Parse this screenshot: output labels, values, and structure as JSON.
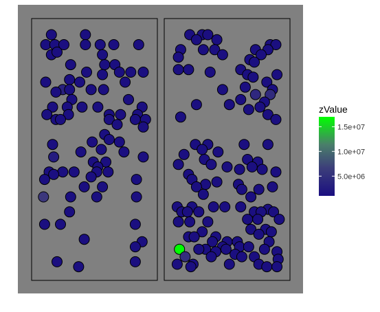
{
  "chart_data": {
    "type": "scatter",
    "facets": 2,
    "background_color": "#808080",
    "panel_border_color": "#000000",
    "point_outline_color": "#000000",
    "legend": {
      "title": "zValue",
      "position": "right",
      "ticks": [
        {
          "value": 5000000,
          "label": "5.0e+06"
        },
        {
          "value": 10000000,
          "label": "1.0e+07"
        },
        {
          "value": 15000000,
          "label": "1.5e+07"
        }
      ],
      "range": [
        1000000,
        17000000
      ],
      "colors": [
        "#1a0e80",
        "#4c4b7a",
        "#4a7f6a",
        "#00ff00"
      ]
    },
    "x_range": [
      0,
      1
    ],
    "y_range": [
      0,
      1
    ],
    "panels": [
      {
        "points": [
          [
            0.12,
            0.96,
            1100000.0
          ],
          [
            0.42,
            0.96,
            1100000.0
          ],
          [
            0.07,
            0.92,
            1100000.0
          ],
          [
            0.15,
            0.92,
            1100000.0
          ],
          [
            0.23,
            0.92,
            1100000.0
          ],
          [
            0.42,
            0.92,
            1100000.0
          ],
          [
            0.55,
            0.92,
            1100000.0
          ],
          [
            0.67,
            0.92,
            1100000.0
          ],
          [
            0.89,
            0.92,
            1100000.0
          ],
          [
            0.12,
            0.88,
            1100000.0
          ],
          [
            0.17,
            0.89,
            1100000.0
          ],
          [
            0.57,
            0.88,
            1100000.0
          ],
          [
            0.29,
            0.84,
            1100000.0
          ],
          [
            0.59,
            0.84,
            1100000.0
          ],
          [
            0.68,
            0.84,
            1100000.0
          ],
          [
            0.57,
            0.8,
            1100000.0
          ],
          [
            0.72,
            0.81,
            1100000.0
          ],
          [
            0.82,
            0.81,
            1100000.0
          ],
          [
            0.93,
            0.81,
            1100000.0
          ],
          [
            0.43,
            0.81,
            1100000.0
          ],
          [
            0.28,
            0.78,
            1100000.0
          ],
          [
            0.37,
            0.77,
            1100000.0
          ],
          [
            0.07,
            0.77,
            1100000.0
          ],
          [
            0.77,
            0.77,
            1100000.0
          ],
          [
            0.22,
            0.74,
            2600000.0
          ],
          [
            0.28,
            0.74,
            1100000.0
          ],
          [
            0.47,
            0.74,
            1100000.0
          ],
          [
            0.58,
            0.74,
            1100000.0
          ],
          [
            0.16,
            0.73,
            1100000.0
          ],
          [
            0.3,
            0.7,
            1100000.0
          ],
          [
            0.8,
            0.7,
            1100000.0
          ],
          [
            0.13,
            0.67,
            1100000.0
          ],
          [
            0.26,
            0.67,
            1100000.0
          ],
          [
            0.39,
            0.67,
            1100000.0
          ],
          [
            0.53,
            0.67,
            1100000.0
          ],
          [
            0.92,
            0.67,
            1100000.0
          ],
          [
            0.88,
            0.64,
            1100000.0
          ],
          [
            0.08,
            0.64,
            1100000.0
          ],
          [
            0.27,
            0.64,
            1100000.0
          ],
          [
            0.63,
            0.64,
            1100000.0
          ],
          [
            0.73,
            0.64,
            1100000.0
          ],
          [
            0.16,
            0.62,
            1100000.0
          ],
          [
            0.2,
            0.62,
            1100000.0
          ],
          [
            0.63,
            0.62,
            1100000.0
          ],
          [
            0.86,
            0.62,
            1100000.0
          ],
          [
            0.95,
            0.62,
            1100000.0
          ],
          [
            0.93,
            0.59,
            1100000.0
          ],
          [
            0.7,
            0.6,
            1100000.0
          ],
          [
            0.59,
            0.56,
            1100000.0
          ],
          [
            0.63,
            0.54,
            1100000.0
          ],
          [
            0.48,
            0.53,
            1100000.0
          ],
          [
            0.72,
            0.53,
            1100000.0
          ],
          [
            0.13,
            0.52,
            1100000.0
          ],
          [
            0.56,
            0.5,
            1100000.0
          ],
          [
            0.38,
            0.49,
            1100000.0
          ],
          [
            0.76,
            0.49,
            1100000.0
          ],
          [
            0.14,
            0.47,
            2200000.0
          ],
          [
            0.93,
            0.47,
            1100000.0
          ],
          [
            0.49,
            0.45,
            1100000.0
          ],
          [
            0.6,
            0.45,
            1100000.0
          ],
          [
            0.53,
            0.43,
            1100000.0
          ],
          [
            0.1,
            0.41,
            1100000.0
          ],
          [
            0.22,
            0.41,
            1100000.0
          ],
          [
            0.32,
            0.41,
            1100000.0
          ],
          [
            0.52,
            0.41,
            1100000.0
          ],
          [
            0.62,
            0.41,
            1100000.0
          ],
          [
            0.14,
            0.4,
            1100000.0
          ],
          [
            0.47,
            0.39,
            1100000.0
          ],
          [
            0.06,
            0.38,
            1100000.0
          ],
          [
            0.87,
            0.38,
            1100000.0
          ],
          [
            0.41,
            0.35,
            1100000.0
          ],
          [
            0.57,
            0.35,
            1100000.0
          ],
          [
            0.05,
            0.31,
            4600000.0
          ],
          [
            0.29,
            0.31,
            1100000.0
          ],
          [
            0.52,
            0.31,
            1100000.0
          ],
          [
            0.87,
            0.31,
            1100000.0
          ],
          [
            0.28,
            0.25,
            1100000.0
          ],
          [
            0.06,
            0.2,
            1100000.0
          ],
          [
            0.2,
            0.2,
            1100000.0
          ],
          [
            0.86,
            0.2,
            1100000.0
          ],
          [
            0.41,
            0.14,
            1100000.0
          ],
          [
            0.92,
            0.13,
            1100000.0
          ],
          [
            0.86,
            0.11,
            1100000.0
          ],
          [
            0.17,
            0.05,
            1100000.0
          ],
          [
            0.36,
            0.03,
            1100000.0
          ],
          [
            0.86,
            0.05,
            1100000.0
          ]
        ]
      },
      {
        "points": [
          [
            0.17,
            0.96,
            1100000.0
          ],
          [
            0.28,
            0.96,
            1100000.0
          ],
          [
            0.33,
            0.96,
            1100000.0
          ],
          [
            0.23,
            0.94,
            1100000.0
          ],
          [
            0.41,
            0.94,
            1100000.0
          ],
          [
            0.88,
            0.92,
            1100000.0
          ],
          [
            0.93,
            0.92,
            1100000.0
          ],
          [
            0.09,
            0.9,
            1100000.0
          ],
          [
            0.29,
            0.9,
            1100000.0
          ],
          [
            0.39,
            0.9,
            1100000.0
          ],
          [
            0.75,
            0.9,
            1100000.0
          ],
          [
            0.86,
            0.9,
            1100000.0
          ],
          [
            0.07,
            0.87,
            1100000.0
          ],
          [
            0.46,
            0.88,
            1100000.0
          ],
          [
            0.8,
            0.88,
            1100000.0
          ],
          [
            0.7,
            0.86,
            1100000.0
          ],
          [
            0.74,
            0.85,
            1100000.0
          ],
          [
            0.62,
            0.82,
            1100000.0
          ],
          [
            0.07,
            0.82,
            1100000.0
          ],
          [
            0.16,
            0.82,
            1100000.0
          ],
          [
            0.35,
            0.81,
            1100000.0
          ],
          [
            0.68,
            0.8,
            1100000.0
          ],
          [
            0.94,
            0.8,
            1100000.0
          ],
          [
            0.73,
            0.79,
            1100000.0
          ],
          [
            0.85,
            0.77,
            1100000.0
          ],
          [
            0.66,
            0.75,
            1100000.0
          ],
          [
            0.46,
            0.74,
            1100000.0
          ],
          [
            0.9,
            0.74,
            1100000.0
          ],
          [
            0.75,
            0.72,
            3200000.0
          ],
          [
            0.88,
            0.72,
            3500000.0
          ],
          [
            0.62,
            0.7,
            1100000.0
          ],
          [
            0.83,
            0.69,
            1100000.0
          ],
          [
            0.79,
            0.67,
            1100000.0
          ],
          [
            0.23,
            0.68,
            1100000.0
          ],
          [
            0.52,
            0.68,
            1100000.0
          ],
          [
            0.69,
            0.66,
            1100000.0
          ],
          [
            0.09,
            0.63,
            1100000.0
          ],
          [
            0.86,
            0.64,
            1100000.0
          ],
          [
            0.93,
            0.62,
            1100000.0
          ],
          [
            0.22,
            0.52,
            1100000.0
          ],
          [
            0.33,
            0.52,
            1100000.0
          ],
          [
            0.65,
            0.52,
            1100000.0
          ],
          [
            0.86,
            0.52,
            1100000.0
          ],
          [
            0.28,
            0.5,
            1100000.0
          ],
          [
            0.42,
            0.49,
            1100000.0
          ],
          [
            0.12,
            0.48,
            1100000.0
          ],
          [
            0.3,
            0.46,
            1100000.0
          ],
          [
            0.36,
            0.44,
            1100000.0
          ],
          [
            0.68,
            0.46,
            1100000.0
          ],
          [
            0.77,
            0.45,
            1100000.0
          ],
          [
            0.07,
            0.44,
            1100000.0
          ],
          [
            0.5,
            0.43,
            1100000.0
          ],
          [
            0.72,
            0.43,
            1100000.0
          ],
          [
            0.81,
            0.42,
            1100000.0
          ],
          [
            0.16,
            0.4,
            1100000.0
          ],
          [
            0.61,
            0.42,
            1100000.0
          ],
          [
            0.93,
            0.41,
            1100000.0
          ],
          [
            0.19,
            0.38,
            1100000.0
          ],
          [
            0.31,
            0.36,
            1100000.0
          ],
          [
            0.41,
            0.37,
            1100000.0
          ],
          [
            0.6,
            0.36,
            1100000.0
          ],
          [
            0.23,
            0.35,
            1100000.0
          ],
          [
            0.63,
            0.34,
            1100000.0
          ],
          [
            0.78,
            0.34,
            1100000.0
          ],
          [
            0.9,
            0.35,
            1100000.0
          ],
          [
            0.29,
            0.32,
            1100000.0
          ],
          [
            0.71,
            0.31,
            1100000.0
          ],
          [
            0.06,
            0.27,
            1100000.0
          ],
          [
            0.19,
            0.27,
            1100000.0
          ],
          [
            0.38,
            0.27,
            1100000.0
          ],
          [
            0.48,
            0.27,
            1100000.0
          ],
          [
            0.62,
            0.27,
            1100000.0
          ],
          [
            0.86,
            0.26,
            1100000.0
          ],
          [
            0.1,
            0.25,
            1100000.0
          ],
          [
            0.15,
            0.25,
            1100000.0
          ],
          [
            0.25,
            0.25,
            1100000.0
          ],
          [
            0.74,
            0.25,
            1100000.0
          ],
          [
            0.8,
            0.25,
            1100000.0
          ],
          [
            0.91,
            0.25,
            1100000.0
          ],
          [
            0.07,
            0.21,
            1100000.0
          ],
          [
            0.17,
            0.21,
            1100000.0
          ],
          [
            0.33,
            0.21,
            1100000.0
          ],
          [
            0.68,
            0.22,
            1100000.0
          ],
          [
            0.77,
            0.22,
            1100000.0
          ],
          [
            0.96,
            0.22,
            1100000.0
          ],
          [
            0.84,
            0.18,
            1100000.0
          ],
          [
            0.28,
            0.17,
            1100000.0
          ],
          [
            0.71,
            0.18,
            1100000.0
          ],
          [
            0.89,
            0.17,
            1100000.0
          ],
          [
            0.16,
            0.15,
            1100000.0
          ],
          [
            0.21,
            0.15,
            1100000.0
          ],
          [
            0.4,
            0.15,
            1100000.0
          ],
          [
            0.78,
            0.16,
            1100000.0
          ],
          [
            0.37,
            0.13,
            1100000.0
          ],
          [
            0.5,
            0.13,
            1100000.0
          ],
          [
            0.59,
            0.13,
            1100000.0
          ],
          [
            0.87,
            0.13,
            1100000.0
          ],
          [
            0.46,
            0.11,
            1100000.0
          ],
          [
            0.31,
            0.1,
            1100000.0
          ],
          [
            0.61,
            0.11,
            1100000.0
          ],
          [
            0.69,
            0.11,
            1100000.0
          ],
          [
            0.08,
            0.1,
            17000000.0
          ],
          [
            0.25,
            0.1,
            1100000.0
          ],
          [
            0.4,
            0.09,
            1100000.0
          ],
          [
            0.49,
            0.1,
            1100000.0
          ],
          [
            0.57,
            0.08,
            1100000.0
          ],
          [
            0.63,
            0.07,
            1100000.0
          ],
          [
            0.83,
            0.1,
            1100000.0
          ],
          [
            0.94,
            0.09,
            1100000.0
          ],
          [
            0.13,
            0.07,
            3800000.0
          ],
          [
            0.2,
            0.04,
            1100000.0
          ],
          [
            0.36,
            0.07,
            1100000.0
          ],
          [
            0.74,
            0.07,
            1100000.0
          ],
          [
            0.95,
            0.06,
            1100000.0
          ],
          [
            0.06,
            0.04,
            1100000.0
          ],
          [
            0.52,
            0.04,
            1100000.0
          ],
          [
            0.18,
            0.03,
            1100000.0
          ],
          [
            0.78,
            0.04,
            1100000.0
          ],
          [
            0.85,
            0.03,
            1100000.0
          ],
          [
            0.94,
            0.03,
            1100000.0
          ]
        ]
      }
    ]
  }
}
